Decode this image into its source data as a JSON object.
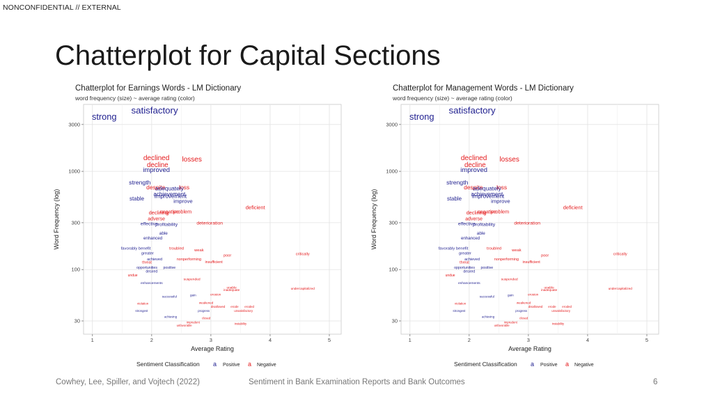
{
  "slide": {
    "classification": "NONCONFIDENTIAL // EXTERNAL",
    "title": "Chatterplot for Capital Sections",
    "footer_left": "Cowhey, Lee, Spiller, and Vojtech (2022)",
    "footer_center": "Sentiment in Bank Examination Reports and Bank Outcomes",
    "page_number": "6"
  },
  "colors": {
    "positive": "#1f1f8f",
    "negative": "#e41a1c"
  },
  "chart_data": [
    {
      "type": "scatter",
      "title": "Chatterplot for Earnings Words - LM Dictionary",
      "subtitle": "word frequency (size) ~ average rating (color)",
      "xlabel": "Average Rating",
      "ylabel": "Word Frequency (log)",
      "xlim": [
        0.85,
        5.2
      ],
      "ylim": [
        22,
        4800
      ],
      "y_scale": "log",
      "x_ticks": [
        1,
        2,
        3,
        4,
        5
      ],
      "y_ticks": [
        30,
        100,
        300,
        1000,
        3000
      ],
      "grid": true,
      "legend_position": "bottom",
      "legend": {
        "title": "Sentiment Classification",
        "symbol": "a",
        "items": [
          "Positive",
          "Negative"
        ]
      },
      "points": [
        {
          "word": "satisfactory",
          "x": 2.05,
          "y": 4200,
          "sentiment": "Positive"
        },
        {
          "word": "strong",
          "x": 1.2,
          "y": 3600,
          "sentiment": "Positive"
        },
        {
          "word": "declined",
          "x": 2.08,
          "y": 1380,
          "sentiment": "Negative"
        },
        {
          "word": "losses",
          "x": 2.68,
          "y": 1330,
          "sentiment": "Negative"
        },
        {
          "word": "decline",
          "x": 2.1,
          "y": 1170,
          "sentiment": "Negative"
        },
        {
          "word": "improved",
          "x": 2.08,
          "y": 1040,
          "sentiment": "Positive"
        },
        {
          "word": "strength",
          "x": 1.8,
          "y": 770,
          "sentiment": "Positive"
        },
        {
          "word": "loss",
          "x": 2.55,
          "y": 690,
          "sentiment": "Negative"
        },
        {
          "word": "despite",
          "x": 2.07,
          "y": 690,
          "sentiment": "Negative"
        },
        {
          "word": "adequately",
          "x": 2.3,
          "y": 670,
          "sentiment": "Positive"
        },
        {
          "word": "achievement",
          "x": 2.3,
          "y": 590,
          "sentiment": "Positive"
        },
        {
          "word": "improvement",
          "x": 2.32,
          "y": 560,
          "sentiment": "Positive"
        },
        {
          "word": "stable",
          "x": 1.75,
          "y": 530,
          "sentiment": "Positive"
        },
        {
          "word": "improve",
          "x": 2.53,
          "y": 500,
          "sentiment": "Positive"
        },
        {
          "word": "deficient",
          "x": 3.75,
          "y": 430,
          "sentiment": "Negative"
        },
        {
          "word": "negative",
          "x": 2.3,
          "y": 390,
          "sentiment": "Negative"
        },
        {
          "word": "problem",
          "x": 2.52,
          "y": 390,
          "sentiment": "Negative"
        },
        {
          "word": "declining",
          "x": 2.12,
          "y": 380,
          "sentiment": "Negative"
        },
        {
          "word": "adverse",
          "x": 2.08,
          "y": 330,
          "sentiment": "Negative"
        },
        {
          "word": "effective",
          "x": 1.96,
          "y": 295,
          "sentiment": "Positive"
        },
        {
          "word": "profitability",
          "x": 2.25,
          "y": 290,
          "sentiment": "Positive"
        },
        {
          "word": "deterioration",
          "x": 2.98,
          "y": 300,
          "sentiment": "Negative"
        },
        {
          "word": "able",
          "x": 2.2,
          "y": 235,
          "sentiment": "Positive"
        },
        {
          "word": "enhanced",
          "x": 2.02,
          "y": 210,
          "sentiment": "Positive"
        },
        {
          "word": "troubled",
          "x": 2.42,
          "y": 165,
          "sentiment": "Negative"
        },
        {
          "word": "favorably",
          "x": 1.62,
          "y": 165,
          "sentiment": "Positive"
        },
        {
          "word": "benefit",
          "x": 1.88,
          "y": 165,
          "sentiment": "Positive"
        },
        {
          "word": "weak",
          "x": 2.8,
          "y": 158,
          "sentiment": "Negative"
        },
        {
          "word": "greater",
          "x": 1.93,
          "y": 147,
          "sentiment": "Positive"
        },
        {
          "word": "poor",
          "x": 3.28,
          "y": 140,
          "sentiment": "Negative"
        },
        {
          "word": "critically",
          "x": 4.55,
          "y": 145,
          "sentiment": "Negative"
        },
        {
          "word": "achieved",
          "x": 2.05,
          "y": 128,
          "sentiment": "Positive"
        },
        {
          "word": "nonperforming",
          "x": 2.63,
          "y": 128,
          "sentiment": "Negative"
        },
        {
          "word": "insufficient",
          "x": 3.05,
          "y": 120,
          "sentiment": "Negative"
        },
        {
          "word": "threat",
          "x": 1.92,
          "y": 119,
          "sentiment": "Negative"
        },
        {
          "word": "opportunities",
          "x": 1.92,
          "y": 105,
          "sentiment": "Positive"
        },
        {
          "word": "positive",
          "x": 2.3,
          "y": 105,
          "sentiment": "Positive"
        },
        {
          "word": "desired",
          "x": 2.0,
          "y": 96,
          "sentiment": "Positive"
        },
        {
          "word": "undue",
          "x": 1.68,
          "y": 88,
          "sentiment": "Negative"
        },
        {
          "word": "suspended",
          "x": 2.68,
          "y": 80,
          "sentiment": "Negative"
        },
        {
          "word": "enhancements",
          "x": 2.0,
          "y": 73,
          "sentiment": "Positive"
        },
        {
          "word": "unable",
          "x": 3.35,
          "y": 66,
          "sentiment": "Negative"
        },
        {
          "word": "undercapitalized",
          "x": 4.55,
          "y": 64,
          "sentiment": "Negative"
        },
        {
          "word": "inadequate",
          "x": 3.35,
          "y": 62,
          "sentiment": "Negative"
        },
        {
          "word": "gain",
          "x": 2.7,
          "y": 55,
          "sentiment": "Positive"
        },
        {
          "word": "erosion",
          "x": 3.08,
          "y": 56,
          "sentiment": "Negative"
        },
        {
          "word": "successful",
          "x": 2.3,
          "y": 53,
          "sentiment": "Positive"
        },
        {
          "word": "violation",
          "x": 1.85,
          "y": 45,
          "sentiment": "Negative"
        },
        {
          "word": "weakened",
          "x": 2.92,
          "y": 46,
          "sentiment": "Negative"
        },
        {
          "word": "disallowed",
          "x": 3.12,
          "y": 42,
          "sentiment": "Negative"
        },
        {
          "word": "erode",
          "x": 3.4,
          "y": 42,
          "sentiment": "Negative"
        },
        {
          "word": "eroded",
          "x": 3.65,
          "y": 42,
          "sentiment": "Negative"
        },
        {
          "word": "progress",
          "x": 2.88,
          "y": 38,
          "sentiment": "Positive"
        },
        {
          "word": "unsatisfactory",
          "x": 3.55,
          "y": 38,
          "sentiment": "Negative"
        },
        {
          "word": "strongest",
          "x": 1.83,
          "y": 38,
          "sentiment": "Positive"
        },
        {
          "word": "closed",
          "x": 2.92,
          "y": 32,
          "sentiment": "Negative"
        },
        {
          "word": "achieving",
          "x": 2.32,
          "y": 33,
          "sentiment": "Positive"
        },
        {
          "word": "instability",
          "x": 3.5,
          "y": 28,
          "sentiment": "Negative"
        },
        {
          "word": "imprudent",
          "x": 2.7,
          "y": 29,
          "sentiment": "Negative"
        },
        {
          "word": "unfavorable",
          "x": 2.55,
          "y": 27,
          "sentiment": "Negative"
        }
      ]
    },
    {
      "type": "scatter",
      "title": "Chatterplot for Management Words - LM Dictionary",
      "subtitle": "word frequency (size) ~ average rating (color)",
      "xlabel": "Average Rating",
      "ylabel": "Word Frequency (log)",
      "xlim": [
        0.85,
        5.2
      ],
      "ylim": [
        22,
        4800
      ],
      "y_scale": "log",
      "x_ticks": [
        1,
        2,
        3,
        4,
        5
      ],
      "y_ticks": [
        30,
        100,
        300,
        1000,
        3000
      ],
      "grid": true,
      "legend_position": "bottom",
      "legend": {
        "title": "Sentiment Classification",
        "symbol": "a",
        "items": [
          "Positive",
          "Negative"
        ]
      },
      "points": [
        {
          "word": "satisfactory",
          "x": 2.05,
          "y": 4200,
          "sentiment": "Positive"
        },
        {
          "word": "strong",
          "x": 1.2,
          "y": 3600,
          "sentiment": "Positive"
        },
        {
          "word": "declined",
          "x": 2.08,
          "y": 1380,
          "sentiment": "Negative"
        },
        {
          "word": "losses",
          "x": 2.68,
          "y": 1330,
          "sentiment": "Negative"
        },
        {
          "word": "decline",
          "x": 2.1,
          "y": 1170,
          "sentiment": "Negative"
        },
        {
          "word": "improved",
          "x": 2.08,
          "y": 1040,
          "sentiment": "Positive"
        },
        {
          "word": "strength",
          "x": 1.8,
          "y": 770,
          "sentiment": "Positive"
        },
        {
          "word": "loss",
          "x": 2.55,
          "y": 690,
          "sentiment": "Negative"
        },
        {
          "word": "despite",
          "x": 2.07,
          "y": 690,
          "sentiment": "Negative"
        },
        {
          "word": "adequately",
          "x": 2.3,
          "y": 670,
          "sentiment": "Positive"
        },
        {
          "word": "achievement",
          "x": 2.3,
          "y": 590,
          "sentiment": "Positive"
        },
        {
          "word": "improvement",
          "x": 2.32,
          "y": 560,
          "sentiment": "Positive"
        },
        {
          "word": "stable",
          "x": 1.75,
          "y": 530,
          "sentiment": "Positive"
        },
        {
          "word": "improve",
          "x": 2.53,
          "y": 500,
          "sentiment": "Positive"
        },
        {
          "word": "deficient",
          "x": 3.75,
          "y": 430,
          "sentiment": "Negative"
        },
        {
          "word": "negative",
          "x": 2.3,
          "y": 390,
          "sentiment": "Negative"
        },
        {
          "word": "problem",
          "x": 2.52,
          "y": 390,
          "sentiment": "Negative"
        },
        {
          "word": "declining",
          "x": 2.12,
          "y": 380,
          "sentiment": "Negative"
        },
        {
          "word": "adverse",
          "x": 2.08,
          "y": 330,
          "sentiment": "Negative"
        },
        {
          "word": "effective",
          "x": 1.96,
          "y": 295,
          "sentiment": "Positive"
        },
        {
          "word": "profitability",
          "x": 2.25,
          "y": 290,
          "sentiment": "Positive"
        },
        {
          "word": "deterioration",
          "x": 2.98,
          "y": 300,
          "sentiment": "Negative"
        },
        {
          "word": "able",
          "x": 2.2,
          "y": 235,
          "sentiment": "Positive"
        },
        {
          "word": "enhanced",
          "x": 2.02,
          "y": 210,
          "sentiment": "Positive"
        },
        {
          "word": "troubled",
          "x": 2.42,
          "y": 165,
          "sentiment": "Negative"
        },
        {
          "word": "favorably",
          "x": 1.62,
          "y": 165,
          "sentiment": "Positive"
        },
        {
          "word": "benefit",
          "x": 1.88,
          "y": 165,
          "sentiment": "Positive"
        },
        {
          "word": "weak",
          "x": 2.8,
          "y": 158,
          "sentiment": "Negative"
        },
        {
          "word": "greater",
          "x": 1.93,
          "y": 147,
          "sentiment": "Positive"
        },
        {
          "word": "poor",
          "x": 3.28,
          "y": 140,
          "sentiment": "Negative"
        },
        {
          "word": "critically",
          "x": 4.55,
          "y": 145,
          "sentiment": "Negative"
        },
        {
          "word": "achieved",
          "x": 2.05,
          "y": 128,
          "sentiment": "Positive"
        },
        {
          "word": "nonperforming",
          "x": 2.63,
          "y": 128,
          "sentiment": "Negative"
        },
        {
          "word": "insufficient",
          "x": 3.05,
          "y": 120,
          "sentiment": "Negative"
        },
        {
          "word": "threat",
          "x": 1.92,
          "y": 119,
          "sentiment": "Negative"
        },
        {
          "word": "opportunities",
          "x": 1.92,
          "y": 105,
          "sentiment": "Positive"
        },
        {
          "word": "positive",
          "x": 2.3,
          "y": 105,
          "sentiment": "Positive"
        },
        {
          "word": "desired",
          "x": 2.0,
          "y": 96,
          "sentiment": "Positive"
        },
        {
          "word": "undue",
          "x": 1.68,
          "y": 88,
          "sentiment": "Negative"
        },
        {
          "word": "suspended",
          "x": 2.68,
          "y": 80,
          "sentiment": "Negative"
        },
        {
          "word": "enhancements",
          "x": 2.0,
          "y": 73,
          "sentiment": "Positive"
        },
        {
          "word": "unable",
          "x": 3.35,
          "y": 66,
          "sentiment": "Negative"
        },
        {
          "word": "undercapitalized",
          "x": 4.55,
          "y": 64,
          "sentiment": "Negative"
        },
        {
          "word": "inadequate",
          "x": 3.35,
          "y": 62,
          "sentiment": "Negative"
        },
        {
          "word": "gain",
          "x": 2.7,
          "y": 55,
          "sentiment": "Positive"
        },
        {
          "word": "erosion",
          "x": 3.08,
          "y": 56,
          "sentiment": "Negative"
        },
        {
          "word": "successful",
          "x": 2.3,
          "y": 53,
          "sentiment": "Positive"
        },
        {
          "word": "violation",
          "x": 1.85,
          "y": 45,
          "sentiment": "Negative"
        },
        {
          "word": "weakened",
          "x": 2.92,
          "y": 46,
          "sentiment": "Negative"
        },
        {
          "word": "disallowed",
          "x": 3.12,
          "y": 42,
          "sentiment": "Negative"
        },
        {
          "word": "erode",
          "x": 3.4,
          "y": 42,
          "sentiment": "Negative"
        },
        {
          "word": "eroded",
          "x": 3.65,
          "y": 42,
          "sentiment": "Negative"
        },
        {
          "word": "progress",
          "x": 2.88,
          "y": 38,
          "sentiment": "Positive"
        },
        {
          "word": "unsatisfactory",
          "x": 3.55,
          "y": 38,
          "sentiment": "Negative"
        },
        {
          "word": "strongest",
          "x": 1.83,
          "y": 38,
          "sentiment": "Positive"
        },
        {
          "word": "closed",
          "x": 2.92,
          "y": 32,
          "sentiment": "Negative"
        },
        {
          "word": "achieving",
          "x": 2.32,
          "y": 33,
          "sentiment": "Positive"
        },
        {
          "word": "instability",
          "x": 3.5,
          "y": 28,
          "sentiment": "Negative"
        },
        {
          "word": "imprudent",
          "x": 2.7,
          "y": 29,
          "sentiment": "Negative"
        },
        {
          "word": "unfavorable",
          "x": 2.55,
          "y": 27,
          "sentiment": "Negative"
        }
      ]
    }
  ]
}
